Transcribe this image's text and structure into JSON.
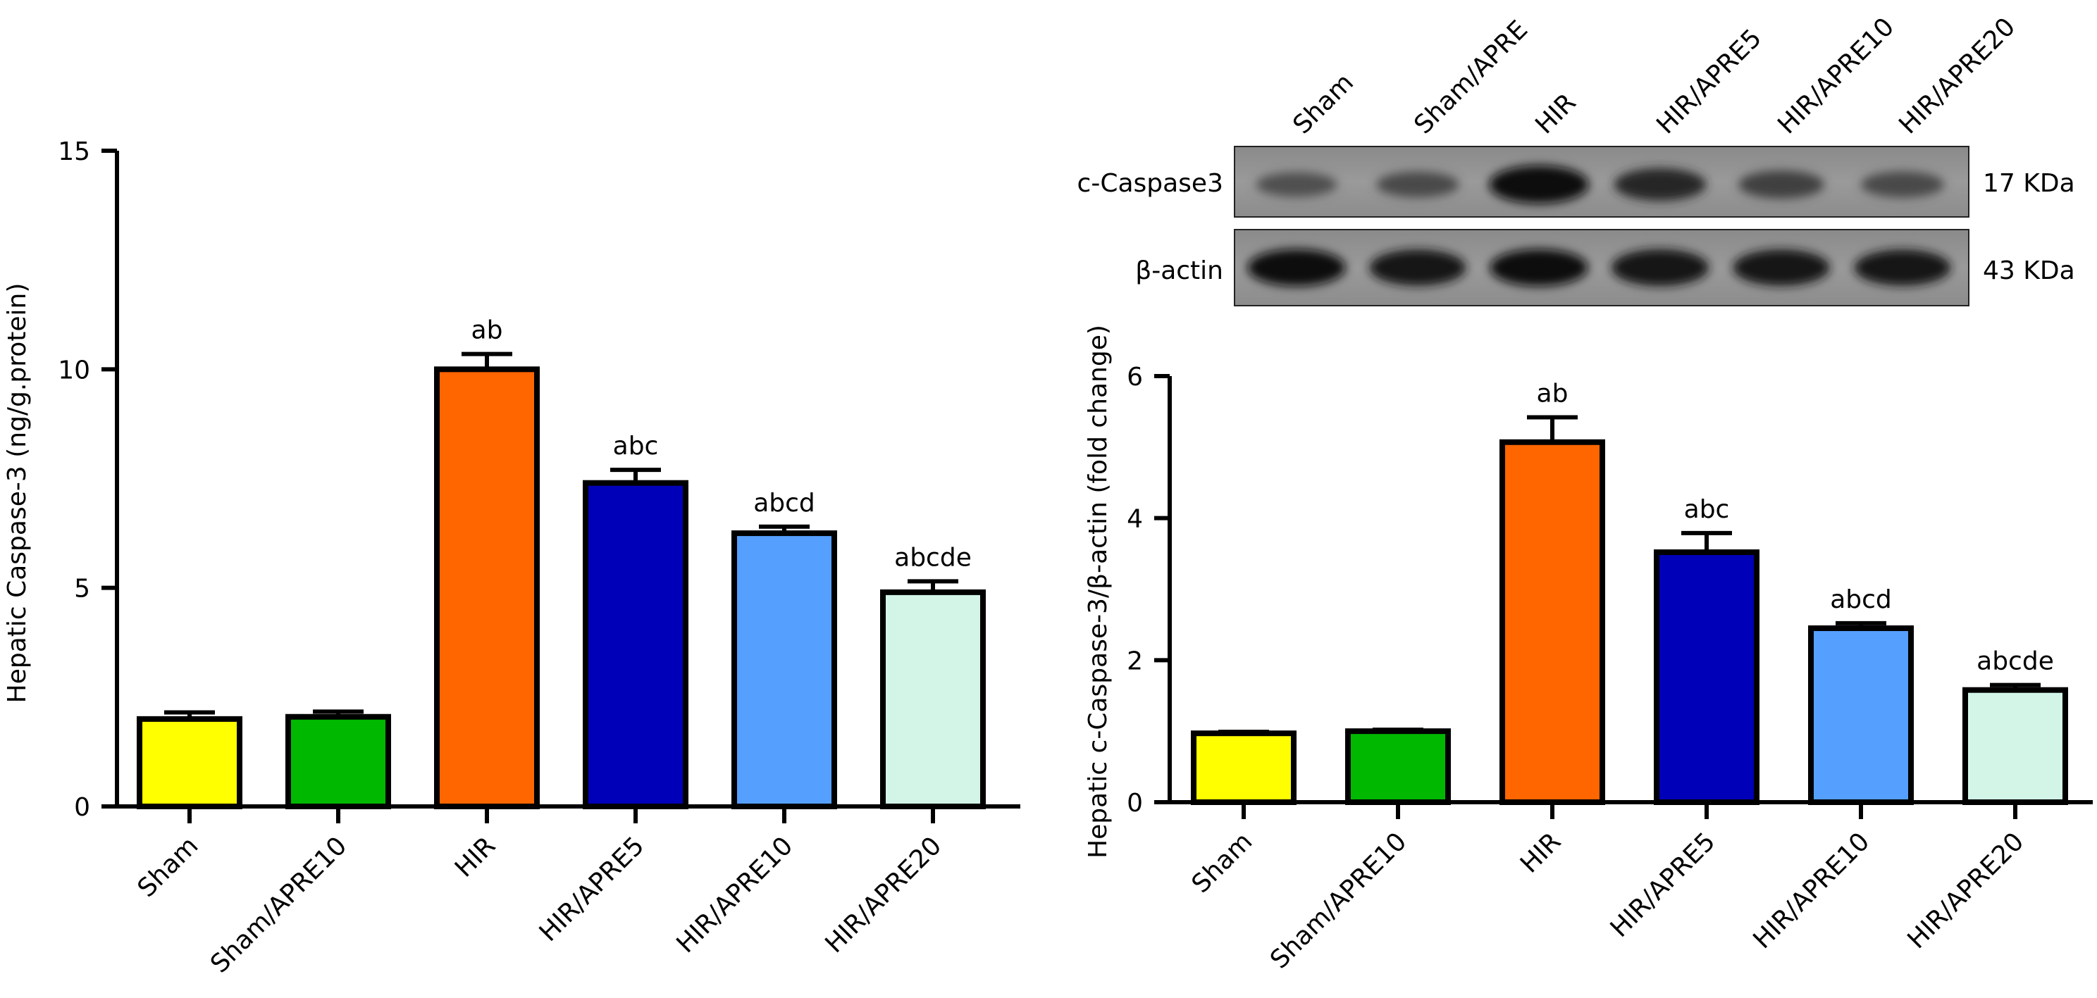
{
  "chart_data": [
    {
      "type": "bar",
      "ylabel": "Hepatic Caspase-3 (ng/g.protein)",
      "ylim": [
        0,
        15
      ],
      "yticks": [
        0,
        5,
        10,
        15
      ],
      "categories": [
        "Sham",
        "Sham/APRE10",
        "HIR",
        "HIR/APRE5",
        "HIR/APRE10",
        "HIR/APRE20"
      ],
      "values": [
        2.0,
        2.05,
        10.0,
        7.4,
        6.25,
        4.9
      ],
      "errors": [
        0.15,
        0.12,
        0.35,
        0.3,
        0.15,
        0.25
      ],
      "annotations": [
        "",
        "",
        "ab",
        "abc",
        "abcd",
        "abcde"
      ],
      "colors": [
        "#ffff00",
        "#00b800",
        "#ff6600",
        "#0000b8",
        "#55a0ff",
        "#d2f5e8"
      ]
    },
    {
      "type": "bar",
      "ylabel": "Hepatic c-Caspase-3/β-actin (fold change)",
      "ylim": [
        0,
        6
      ],
      "yticks": [
        0,
        2,
        4,
        6
      ],
      "categories": [
        "Sham",
        "Sham/APRE10",
        "HIR",
        "HIR/APRE5",
        "HIR/APRE10",
        "HIR/APRE20"
      ],
      "values": [
        0.97,
        1.0,
        5.07,
        3.52,
        2.45,
        1.58
      ],
      "errors": [
        0.02,
        0.02,
        0.35,
        0.27,
        0.07,
        0.07
      ],
      "annotations": [
        "",
        "",
        "ab",
        "abc",
        "abcd",
        "abcde"
      ],
      "colors": [
        "#ffff00",
        "#00b800",
        "#ff6600",
        "#0000b8",
        "#55a0ff",
        "#d2f5e8"
      ]
    }
  ],
  "blot": {
    "lane_labels": [
      "Sham",
      "Sham/APRE",
      "HIR",
      "HIR/APRE5",
      "HIR/APRE10",
      "HIR/APRE20"
    ],
    "rows": [
      {
        "label": "c-Caspase3",
        "size": "17 KDa",
        "intensity": [
          0.35,
          0.4,
          0.95,
          0.7,
          0.5,
          0.42
        ]
      },
      {
        "label": "β-actin",
        "size": "43 KDa",
        "intensity": [
          0.9,
          0.85,
          0.9,
          0.88,
          0.86,
          0.85
        ]
      }
    ]
  }
}
